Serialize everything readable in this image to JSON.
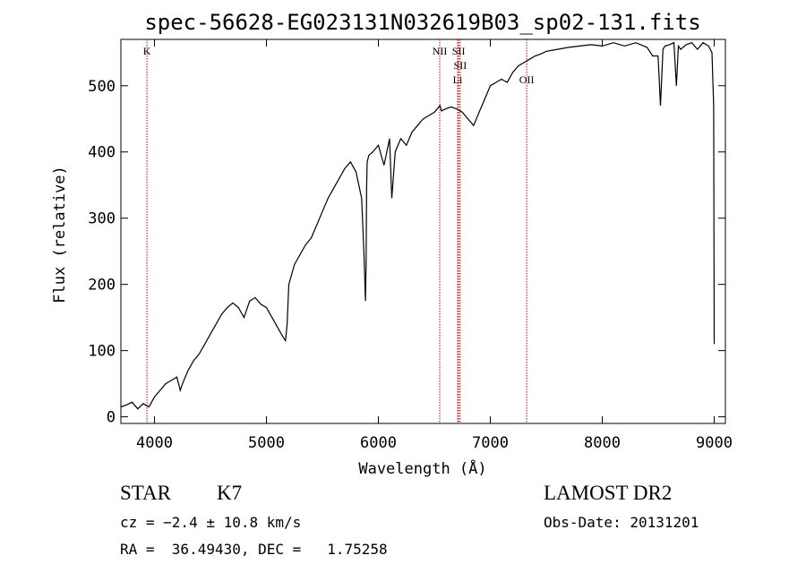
{
  "chart_data": {
    "type": "line",
    "title": "spec-56628-EG023131N032619B03_sp02-131.fits",
    "xlabel": "Wavelength (Å)",
    "ylabel": "Flux (relative)",
    "xlim": [
      3700,
      9100
    ],
    "ylim": [
      -10,
      570
    ],
    "xticks": [
      4000,
      5000,
      6000,
      7000,
      8000,
      9000
    ],
    "yticks": [
      0,
      100,
      200,
      300,
      400,
      500
    ],
    "grid": false,
    "series": [
      {
        "x": [
          3700,
          3750,
          3800,
          3850,
          3900,
          3950,
          4000,
          4050,
          4100,
          4150,
          4200,
          4230,
          4250,
          4300,
          4350,
          4400,
          4450,
          4500,
          4550,
          4600,
          4650,
          4700,
          4750,
          4800,
          4850,
          4900,
          4950,
          5000,
          5050,
          5100,
          5150,
          5170,
          5185,
          5200,
          5250,
          5300,
          5350,
          5400,
          5450,
          5500,
          5550,
          5600,
          5650,
          5700,
          5750,
          5800,
          5850,
          5870,
          5885,
          5890,
          5895,
          5900,
          5915,
          5950,
          6000,
          6050,
          6100,
          6120,
          6150,
          6200,
          6250,
          6300,
          6350,
          6400,
          6450,
          6500,
          6550,
          6563,
          6600,
          6650,
          6700,
          6750,
          6800,
          6850,
          6900,
          6950,
          7000,
          7050,
          7100,
          7150,
          7200,
          7250,
          7300,
          7350,
          7400,
          7450,
          7500,
          7600,
          7700,
          7800,
          7900,
          8000,
          8100,
          8200,
          8300,
          8400,
          8450,
          8498,
          8520,
          8542,
          8560,
          8600,
          8640,
          8662,
          8680,
          8700,
          8750,
          8800,
          8850,
          8900,
          8950,
          8980,
          8995,
          9000
        ],
        "values": [
          15,
          18,
          22,
          12,
          20,
          15,
          30,
          40,
          50,
          55,
          60,
          40,
          50,
          70,
          85,
          95,
          110,
          125,
          140,
          155,
          165,
          172,
          165,
          150,
          175,
          180,
          170,
          165,
          150,
          135,
          120,
          115,
          140,
          200,
          230,
          245,
          260,
          270,
          290,
          310,
          330,
          345,
          360,
          375,
          385,
          370,
          330,
          250,
          175,
          230,
          350,
          385,
          395,
          400,
          410,
          380,
          420,
          330,
          400,
          420,
          410,
          430,
          440,
          450,
          455,
          460,
          470,
          462,
          465,
          468,
          465,
          460,
          450,
          440,
          460,
          480,
          500,
          505,
          510,
          505,
          520,
          530,
          535,
          540,
          545,
          548,
          552,
          555,
          558,
          560,
          562,
          560,
          565,
          560,
          565,
          558,
          545,
          545,
          470,
          555,
          560,
          562,
          565,
          500,
          560,
          555,
          562,
          565,
          555,
          565,
          560,
          550,
          470,
          110
        ]
      }
    ],
    "lines": [
      {
        "label": "K",
        "x": 3933
      },
      {
        "label": "NII",
        "x": 6548
      },
      {
        "label": "SII",
        "x": 6717
      },
      {
        "label": "SII",
        "x": 6731
      },
      {
        "label": "Li",
        "x": 6708
      },
      {
        "label": "OII",
        "x": 7325
      }
    ]
  },
  "info": {
    "class": "STAR",
    "subclass": "K7",
    "survey": "LAMOST DR2",
    "cz": "cz = −2.4 ± 10.8 km/s",
    "obs_date": "Obs-Date: 20131201",
    "radec": "RA =  36.49430, DEC =   1.75258"
  },
  "colors": {
    "spectrum": "#000000",
    "line_marker": "#cc0000"
  }
}
